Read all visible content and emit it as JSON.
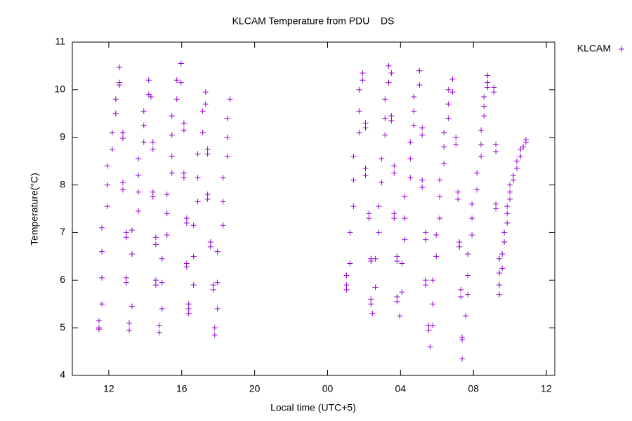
{
  "chart_data": {
    "type": "scatter",
    "title": "KLCAM Temperature from PDU    DS",
    "x_label": "Local time (UTC+5)",
    "y_label": "Temperature(°C)",
    "xlim": [
      10,
      36.46
    ],
    "ylim": [
      4,
      11
    ],
    "xticks": [
      12,
      16,
      20,
      {
        "value": 24,
        "label": "00"
      },
      {
        "value": 28,
        "label": "04"
      },
      {
        "value": 32,
        "label": "08"
      },
      {
        "value": 36,
        "label": "12"
      }
    ],
    "yticks": [
      4,
      5,
      6,
      7,
      8,
      9,
      10,
      11
    ],
    "grid": false,
    "legend": "top-right",
    "x": [
      11.46,
      11.46,
      11.46,
      11.62,
      11.62,
      11.62,
      11.62,
      11.92,
      11.92,
      11.92,
      12.19,
      12.19,
      12.38,
      12.38,
      12.58,
      12.58,
      12.58,
      12.77,
      12.77,
      12.77,
      12.77,
      12.96,
      12.96,
      12.96,
      12.96,
      13.12,
      13.12,
      13.27,
      13.27,
      13.27,
      13.62,
      13.62,
      13.62,
      13.62,
      13.92,
      13.92,
      13.92,
      14.19,
      14.19,
      14.31,
      14.42,
      14.42,
      14.42,
      14.42,
      14.58,
      14.58,
      14.58,
      14.58,
      14.77,
      14.77,
      14.92,
      14.92,
      14.92,
      15.19,
      15.19,
      15.19,
      15.46,
      15.46,
      15.46,
      15.46,
      15.73,
      15.73,
      15.96,
      15.96,
      16.12,
      16.12,
      16.12,
      16.12,
      16.27,
      16.27,
      16.27,
      16.27,
      16.38,
      16.38,
      16.38,
      16.65,
      16.65,
      16.65,
      16.88,
      16.88,
      16.88,
      17.15,
      17.15,
      17.31,
      17.31,
      17.42,
      17.42,
      17.42,
      17.42,
      17.58,
      17.58,
      17.73,
      17.73,
      17.81,
      17.81,
      17.96,
      17.96,
      17.96,
      18.27,
      18.27,
      18.27,
      18.5,
      18.5,
      18.5,
      18.65,
      25.04,
      25.04,
      25.04,
      25.23,
      25.23,
      25.42,
      25.42,
      25.42,
      25.73,
      25.73,
      25.73,
      25.92,
      25.92,
      26.08,
      26.08,
      26.08,
      26.08,
      26.27,
      26.27,
      26.38,
      26.38,
      26.38,
      26.38,
      26.46,
      26.62,
      26.62,
      26.81,
      26.81,
      26.96,
      26.96,
      27.15,
      27.15,
      27.15,
      27.35,
      27.35,
      27.5,
      27.5,
      27.5,
      27.65,
      27.65,
      27.65,
      27.65,
      27.81,
      27.81,
      27.81,
      27.81,
      27.96,
      28.08,
      28.08,
      28.23,
      28.23,
      28.23,
      28.54,
      28.54,
      28.54,
      28.73,
      28.73,
      28.73,
      29.04,
      29.04,
      29.19,
      29.19,
      29.19,
      29.19,
      29.38,
      29.38,
      29.38,
      29.38,
      29.54,
      29.54,
      29.62,
      29.77,
      29.77,
      29.77,
      29.96,
      29.96,
      30.15,
      30.15,
      30.15,
      30.38,
      30.38,
      30.38,
      30.62,
      30.62,
      30.62,
      30.85,
      30.85,
      31.04,
      31.04,
      31.15,
      31.15,
      31.23,
      31.23,
      31.31,
      31.31,
      31.38,
      31.38,
      31.38,
      31.58,
      31.69,
      31.69,
      31.69,
      31.92,
      31.92,
      31.92,
      32.19,
      32.19,
      32.42,
      32.42,
      32.42,
      32.58,
      32.58,
      32.58,
      32.77,
      32.77,
      32.77,
      33.12,
      33.12,
      33.23,
      33.23,
      33.23,
      33.23,
      33.42,
      33.42,
      33.42,
      33.42,
      33.58,
      33.58,
      33.69,
      33.69,
      33.85,
      33.85,
      33.85,
      34.0,
      34.0,
      34.0,
      34.19,
      34.19,
      34.38,
      34.38,
      34.58,
      34.58,
      34.73,
      34.88,
      34.88
    ],
    "series": [
      {
        "name": "KLCAM",
        "color": "#9400d3",
        "values": [
          5.15,
          5.0,
          4.97,
          5.5,
          6.05,
          6.6,
          7.1,
          7.55,
          8.0,
          8.4,
          8.75,
          9.1,
          9.5,
          9.8,
          10.15,
          10.47,
          10.1,
          9.1,
          8.98,
          8.05,
          7.9,
          7.0,
          6.9,
          6.05,
          5.95,
          5.1,
          4.95,
          5.45,
          6.55,
          7.05,
          7.45,
          7.85,
          8.2,
          8.55,
          8.9,
          9.25,
          9.55,
          9.9,
          10.2,
          9.85,
          8.9,
          8.75,
          7.85,
          7.75,
          6.9,
          6.75,
          6.0,
          5.9,
          5.05,
          4.9,
          5.4,
          5.95,
          6.45,
          6.95,
          7.4,
          7.8,
          8.25,
          8.6,
          9.05,
          9.45,
          9.8,
          10.2,
          10.55,
          10.15,
          9.3,
          9.15,
          8.25,
          8.15,
          7.3,
          7.2,
          6.35,
          6.28,
          5.5,
          5.4,
          5.3,
          5.9,
          6.5,
          7.15,
          7.65,
          8.15,
          8.65,
          9.1,
          9.55,
          9.95,
          9.7,
          8.75,
          8.65,
          7.8,
          7.7,
          6.8,
          6.7,
          5.8,
          5.9,
          5.0,
          4.85,
          5.4,
          5.95,
          6.6,
          7.15,
          7.65,
          8.15,
          8.6,
          9.0,
          9.4,
          9.8,
          6.1,
          5.9,
          5.8,
          6.35,
          7.0,
          7.55,
          8.1,
          8.6,
          9.1,
          9.55,
          10.0,
          10.35,
          10.2,
          9.3,
          9.2,
          8.35,
          8.2,
          7.4,
          7.3,
          6.45,
          6.4,
          5.6,
          5.5,
          5.3,
          5.85,
          6.45,
          7.0,
          7.55,
          8.05,
          8.55,
          9.05,
          9.4,
          9.8,
          10.15,
          10.5,
          10.35,
          9.45,
          9.35,
          8.4,
          8.25,
          7.4,
          7.3,
          6.5,
          6.4,
          5.65,
          5.55,
          5.25,
          5.75,
          6.35,
          6.85,
          7.3,
          7.75,
          8.15,
          8.55,
          8.9,
          9.25,
          9.55,
          9.85,
          10.4,
          10.1,
          9.2,
          9.05,
          8.1,
          7.95,
          7.0,
          6.85,
          6.0,
          5.9,
          5.05,
          4.95,
          4.6,
          5.05,
          5.5,
          6.0,
          6.5,
          6.95,
          7.3,
          7.75,
          8.1,
          8.45,
          8.8,
          9.1,
          9.4,
          9.7,
          10.0,
          10.22,
          9.95,
          9.0,
          8.85,
          7.85,
          7.7,
          6.8,
          6.7,
          5.8,
          5.65,
          4.8,
          4.75,
          4.35,
          5.25,
          5.7,
          6.1,
          6.55,
          6.95,
          7.3,
          7.6,
          7.9,
          8.25,
          8.6,
          8.85,
          9.15,
          9.45,
          9.65,
          9.85,
          10.05,
          10.15,
          10.3,
          10.05,
          9.95,
          8.85,
          8.7,
          7.6,
          7.5,
          6.45,
          6.15,
          5.9,
          5.7,
          6.25,
          6.55,
          6.8,
          7.0,
          7.2,
          7.4,
          7.55,
          7.7,
          7.85,
          8.0,
          8.1,
          8.2,
          8.35,
          8.5,
          8.6,
          8.75,
          8.8,
          8.9,
          8.95
        ]
      }
    ]
  }
}
